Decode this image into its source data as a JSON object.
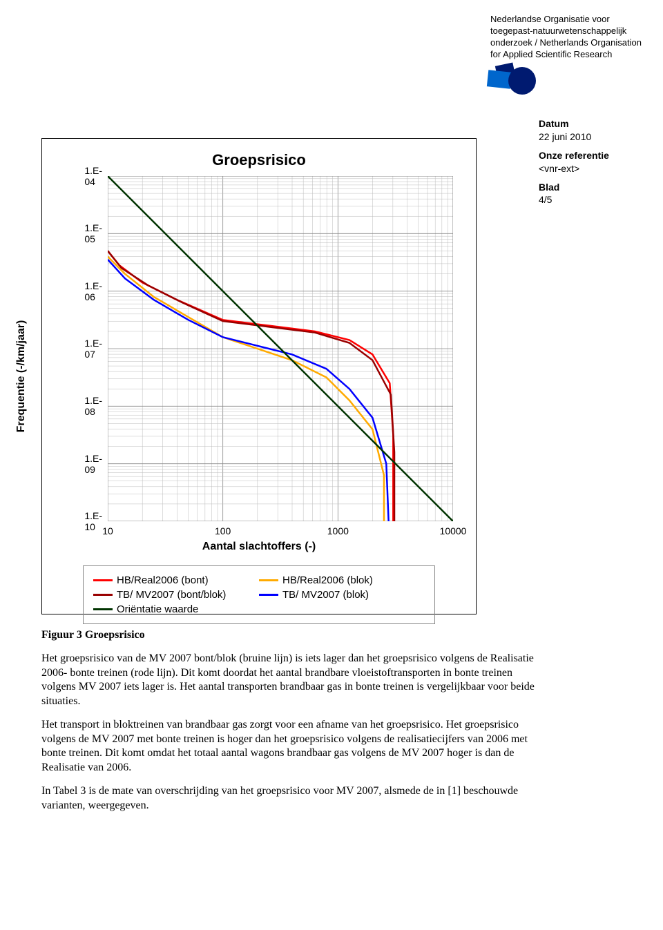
{
  "header": {
    "org_text": "Nederlandse Organisatie voor toegepast-natuurwetenschappelijk onderzoek / Netherlands Organisation for Applied Scientific Research",
    "logo_colors": {
      "dark": "#001a70",
      "mid": "#0066cc",
      "light": "#3399ff"
    }
  },
  "meta": {
    "date_label": "Datum",
    "date_value": "22 juni 2010",
    "ref_label": "Onze referentie",
    "ref_value": "<vnr-ext>",
    "page_label": "Blad",
    "page_value": "4/5"
  },
  "chart": {
    "title": "Groepsrisico",
    "ylabel": "Frequentie (-/km/jaar)",
    "xlabel": "Aantal slachtoffers (-)",
    "type": "line-loglog",
    "x_log_min": 1,
    "x_log_max": 4,
    "y_log_min": -10,
    "y_log_max": -4,
    "yticks": [
      "1.E-04",
      "1.E-05",
      "1.E-06",
      "1.E-07",
      "1.E-08",
      "1.E-09",
      "1.E-10"
    ],
    "ytick_logvals": [
      -4,
      -5,
      -6,
      -7,
      -8,
      -9,
      -10
    ],
    "xticks": [
      "10",
      "100",
      "1000",
      "10000"
    ],
    "xtick_logvals": [
      1,
      2,
      3,
      4
    ],
    "grid_color": "#bbbbbb",
    "grid_major_color": "#888888",
    "background_color": "#ffffff",
    "line_width": 2.5,
    "series": [
      {
        "name": "HB/Real2006 (bont)",
        "color": "#ff0000",
        "pts": [
          [
            1.0,
            -5.3
          ],
          [
            1.1,
            -5.55
          ],
          [
            1.3,
            -5.85
          ],
          [
            1.6,
            -6.15
          ],
          [
            2.0,
            -6.5
          ],
          [
            2.4,
            -6.6
          ],
          [
            2.8,
            -6.7
          ],
          [
            3.1,
            -6.85
          ],
          [
            3.3,
            -7.1
          ],
          [
            3.45,
            -7.6
          ],
          [
            3.48,
            -8.5
          ],
          [
            3.48,
            -10.0
          ]
        ]
      },
      {
        "name": "HB/Real2006 (blok)",
        "color": "#ffaa00",
        "pts": [
          [
            1.0,
            -5.4
          ],
          [
            1.15,
            -5.7
          ],
          [
            1.4,
            -6.1
          ],
          [
            1.7,
            -6.45
          ],
          [
            2.0,
            -6.8
          ],
          [
            2.3,
            -7.0
          ],
          [
            2.6,
            -7.2
          ],
          [
            2.9,
            -7.5
          ],
          [
            3.1,
            -7.9
          ],
          [
            3.3,
            -8.4
          ],
          [
            3.4,
            -9.2
          ],
          [
            3.4,
            -10.0
          ]
        ]
      },
      {
        "name": "TB/ MV2007 (bont/blok)",
        "color": "#990000",
        "pts": [
          [
            1.0,
            -5.3
          ],
          [
            1.12,
            -5.6
          ],
          [
            1.35,
            -5.9
          ],
          [
            1.65,
            -6.2
          ],
          [
            2.0,
            -6.52
          ],
          [
            2.4,
            -6.62
          ],
          [
            2.8,
            -6.72
          ],
          [
            3.1,
            -6.9
          ],
          [
            3.3,
            -7.2
          ],
          [
            3.46,
            -7.8
          ],
          [
            3.49,
            -8.8
          ],
          [
            3.49,
            -10.0
          ]
        ]
      },
      {
        "name": "TB/ MV2007 (blok)",
        "color": "#0000ff",
        "pts": [
          [
            1.0,
            -5.45
          ],
          [
            1.15,
            -5.78
          ],
          [
            1.4,
            -6.15
          ],
          [
            1.7,
            -6.5
          ],
          [
            2.0,
            -6.8
          ],
          [
            2.3,
            -6.95
          ],
          [
            2.6,
            -7.1
          ],
          [
            2.9,
            -7.35
          ],
          [
            3.1,
            -7.7
          ],
          [
            3.3,
            -8.2
          ],
          [
            3.42,
            -9.0
          ],
          [
            3.44,
            -10.0
          ]
        ]
      },
      {
        "name": "Oriëntatie waarde",
        "color": "#003300",
        "pts": [
          [
            1.0,
            -4.0
          ],
          [
            4.0,
            -10.0
          ]
        ]
      }
    ],
    "legend_layout": [
      [
        0,
        1
      ],
      [
        2,
        3
      ],
      [
        4
      ]
    ]
  },
  "body": {
    "fig_caption": "Figuur 3   Groepsrisico",
    "p1": "Het groepsrisico van de MV 2007 bont/blok (bruine lijn) is iets lager dan het groepsrisico volgens de Realisatie 2006- bonte treinen (rode lijn). Dit komt doordat het aantal brandbare vloeistoftransporten in bonte treinen volgens MV 2007 iets lager is. Het aantal transporten brandbaar gas in bonte treinen is vergelijkbaar voor beide situaties.",
    "p2": "Het transport in bloktreinen van brandbaar gas zorgt voor een afname van het groepsrisico. Het groepsrisico volgens de MV 2007 met bonte treinen is hoger dan het groepsrisico volgens de realisatiecijfers van 2006 met bonte treinen. Dit komt omdat het totaal aantal wagons brandbaar gas volgens de MV 2007 hoger is dan de Realisatie van 2006.",
    "p3": "In Tabel 3 is de mate van overschrijding van het groepsrisico voor MV 2007, alsmede de in [1] beschouwde varianten, weergegeven."
  }
}
